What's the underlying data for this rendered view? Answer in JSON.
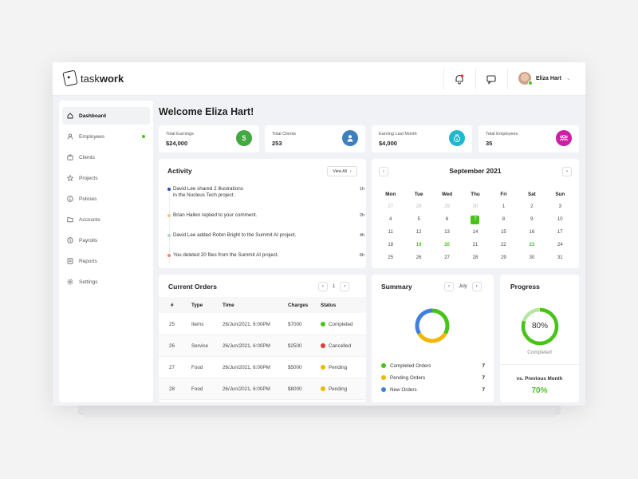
{
  "brand": {
    "name_light": "task",
    "name_bold": "work"
  },
  "user": {
    "name": "Eliza Hart"
  },
  "sidebar": {
    "items": [
      {
        "label": "Dashboard",
        "icon": "home-icon",
        "active": true
      },
      {
        "label": "Employees",
        "icon": "user-icon",
        "badge": true
      },
      {
        "label": "Clients",
        "icon": "briefcase-icon"
      },
      {
        "label": "Projects",
        "icon": "star-icon"
      },
      {
        "label": "Policies",
        "icon": "info-icon"
      },
      {
        "label": "Accounts",
        "icon": "folder-icon"
      },
      {
        "label": "Payrolls",
        "icon": "dollar-icon"
      },
      {
        "label": "Reports",
        "icon": "report-icon"
      },
      {
        "label": "Settings",
        "icon": "gear-icon"
      }
    ]
  },
  "welcome": "Welcome Eliza Hart!",
  "stats": [
    {
      "label": "Total Earnings",
      "value": "$24,000",
      "color": "#43a841",
      "icon": "dollar-icon"
    },
    {
      "label": "Total Clients",
      "value": "253",
      "color": "#3f7fbe",
      "icon": "user-icon"
    },
    {
      "label": "Earning Last Month",
      "value": "$4,000",
      "color": "#22b7cf",
      "icon": "money-bag-icon"
    },
    {
      "label": "Total Employees",
      "value": "35",
      "color": "#cc1fa6",
      "icon": "team-icon"
    }
  ],
  "activity": {
    "title": "Activity",
    "view_all": "View All",
    "items": [
      {
        "line1": "David Lee shared 2 illustrations",
        "line2": "in the Nucleus Tech project.",
        "time": "1h",
        "color": "#2b4bbd"
      },
      {
        "line1": "Brian Hallen replied to your comment.",
        "line2": "",
        "time": "2h",
        "color": "#f4c28a"
      },
      {
        "line1": "David Lee added Robin Bright to the Summit AI project.",
        "line2": "",
        "time": "4h",
        "color": "#a9d9c2"
      },
      {
        "line1": "You deleted 20 files from the Summit AI project.",
        "line2": "",
        "time": "6h",
        "color": "#ef8a78"
      }
    ]
  },
  "calendar": {
    "title": "September 2021",
    "days": [
      "Mon",
      "Tue",
      "Wed",
      "Thu",
      "Fri",
      "Sat",
      "Sun"
    ],
    "weeks": [
      [
        "27",
        "28",
        "29",
        "30",
        "1",
        "2",
        "3"
      ],
      [
        "4",
        "5",
        "6",
        "7",
        "8",
        "9",
        "10"
      ],
      [
        "11",
        "12",
        "13",
        "14",
        "15",
        "16",
        "17"
      ],
      [
        "18",
        "19",
        "20",
        "21",
        "22",
        "23",
        "24"
      ],
      [
        "25",
        "26",
        "27",
        "28",
        "29",
        "30",
        "31"
      ]
    ]
  },
  "orders": {
    "title": "Current Orders",
    "page": "1",
    "headers": [
      "#",
      "Type",
      "Time",
      "Charges",
      "Status"
    ],
    "rows": [
      {
        "id": "25",
        "type": "Items",
        "time": "26/Jun/2021, 6:00PM",
        "charges": "$7000",
        "status": "Completed",
        "color": "#47c41a"
      },
      {
        "id": "26",
        "type": "Service",
        "time": "26/Jun/2021, 6:00PM",
        "charges": "$2500",
        "status": "Cancelled",
        "color": "#e53935"
      },
      {
        "id": "27",
        "type": "Food",
        "time": "26/Jun/2021, 6:00PM",
        "charges": "$5000",
        "status": "Pending",
        "color": "#f2b705"
      },
      {
        "id": "28",
        "type": "Food",
        "time": "26/Jun/2021, 6:00PM",
        "charges": "$8000",
        "status": "Pending",
        "color": "#f2b705"
      }
    ]
  },
  "summary": {
    "title": "Summary",
    "month": "July",
    "items": [
      {
        "label": "Completed Orders",
        "value": "7",
        "color": "#47c41a"
      },
      {
        "label": "Pending Orders",
        "value": "7",
        "color": "#f2b705"
      },
      {
        "label": "New Orders",
        "value": "7",
        "color": "#3f7fe0"
      }
    ]
  },
  "progress": {
    "title": "Progress",
    "percent": "80%",
    "fraction": 0.8,
    "caption": "Completed",
    "compare_label": "vs. Previous Month",
    "compare_value": "70%"
  }
}
